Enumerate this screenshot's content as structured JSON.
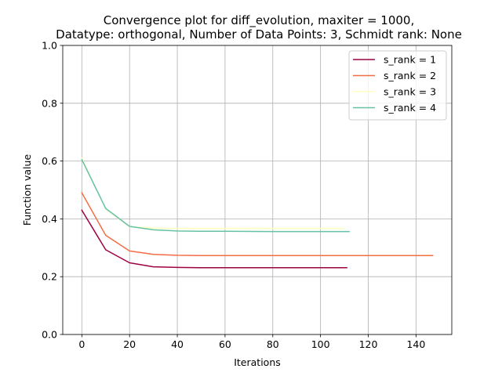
{
  "chart_data": {
    "type": "line",
    "title_lines": [
      "Convergence plot for diff_evolution, maxiter = 1000,",
      "Datatype: orthogonal, Number of Data Points: 3, Schmidt rank: None"
    ],
    "xlabel": "Iterations",
    "ylabel": "Function value",
    "xlim": [
      -8,
      155
    ],
    "ylim": [
      0.0,
      1.0
    ],
    "xticks": [
      0,
      20,
      40,
      60,
      80,
      100,
      120,
      140
    ],
    "yticks": [
      0.0,
      0.2,
      0.4,
      0.6,
      0.8,
      1.0
    ],
    "xtick_labels": [
      "0",
      "20",
      "40",
      "60",
      "80",
      "100",
      "120",
      "140"
    ],
    "ytick_labels": [
      "0.0",
      "0.2",
      "0.4",
      "0.6",
      "0.8",
      "1.0"
    ],
    "grid": true,
    "legend_position": "top-right",
    "series": [
      {
        "name": "s_rank = 1",
        "color": "#9e0142",
        "points": [
          [
            0,
            0.43
          ],
          [
            10,
            0.293
          ],
          [
            20,
            0.248
          ],
          [
            30,
            0.234
          ],
          [
            40,
            0.232
          ],
          [
            50,
            0.231
          ],
          [
            60,
            0.231
          ],
          [
            80,
            0.231
          ],
          [
            100,
            0.231
          ],
          [
            111,
            0.231
          ]
        ]
      },
      {
        "name": "s_rank = 2",
        "color": "#f46d43",
        "points": [
          [
            0,
            0.49
          ],
          [
            10,
            0.343
          ],
          [
            20,
            0.289
          ],
          [
            30,
            0.277
          ],
          [
            40,
            0.274
          ],
          [
            50,
            0.273
          ],
          [
            80,
            0.273
          ],
          [
            120,
            0.273
          ],
          [
            147,
            0.273
          ]
        ]
      },
      {
        "name": "s_rank = 3",
        "color": "#ffffbf",
        "points": [
          [
            0,
            0.61
          ],
          [
            10,
            0.434
          ],
          [
            20,
            0.373
          ],
          [
            30,
            0.368
          ],
          [
            40,
            0.367
          ],
          [
            60,
            0.367
          ],
          [
            80,
            0.367
          ],
          [
            100,
            0.367
          ],
          [
            110,
            0.367
          ]
        ]
      },
      {
        "name": "s_rank = 4",
        "color": "#66c2a5",
        "points": [
          [
            0,
            0.605
          ],
          [
            10,
            0.436
          ],
          [
            20,
            0.374
          ],
          [
            30,
            0.362
          ],
          [
            40,
            0.358
          ],
          [
            50,
            0.357
          ],
          [
            60,
            0.357
          ],
          [
            80,
            0.356
          ],
          [
            100,
            0.356
          ],
          [
            112,
            0.356
          ]
        ]
      }
    ]
  }
}
